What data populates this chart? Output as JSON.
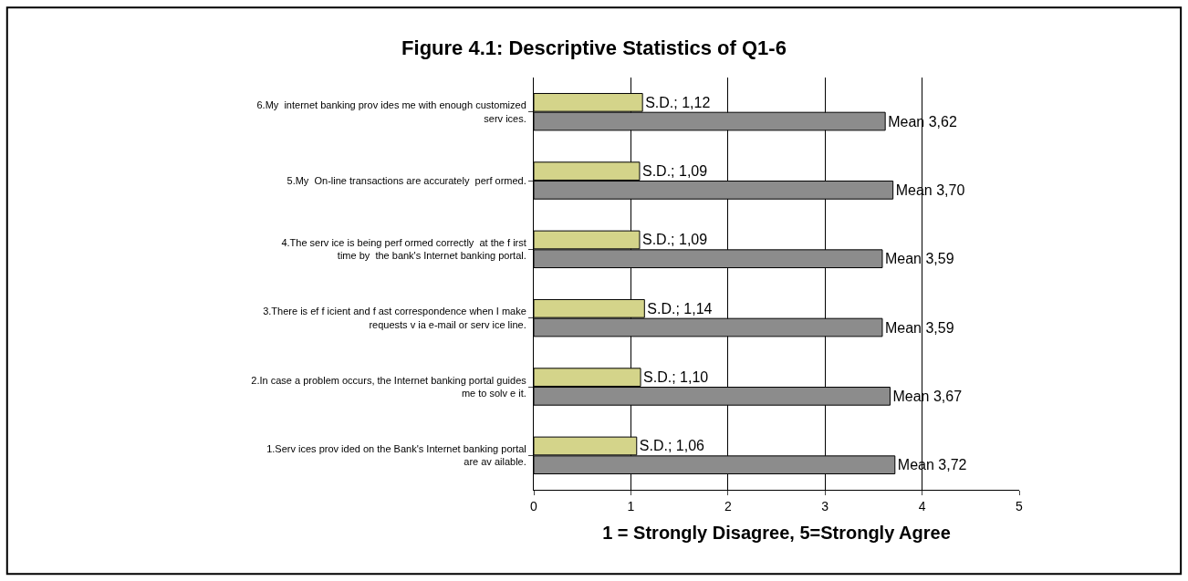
{
  "chart_data": {
    "type": "bar",
    "orientation": "horizontal",
    "title": "Figure 4.1: Descriptive Statistics of Q1-6",
    "xlabel": "1 = Strongly Disagree, 5=Strongly Agree",
    "categories": [
      "6.My  internet banking prov ides me with enough customized serv ices.",
      "5.My  On-line transactions are accurately  perf ormed.",
      "4.The serv ice is being perf ormed correctly  at the f irst time by  the bank's Internet banking portal.",
      "3.There is ef f icient and f ast correspondence when I make requests v ia e-mail or serv ice line.",
      "2.In case a problem occurs, the Internet banking portal guides me to solv e it.",
      "1.Serv ices prov ided on the Bank's Internet banking portal are av ailable."
    ],
    "series": [
      {
        "color": "#d4d48a",
        "values": [
          1.12,
          1.09,
          1.09,
          1.14,
          1.1,
          1.06
        ],
        "value_labels": [
          "S.D.; 1,12",
          "S.D.; 1,09",
          "S.D.; 1,09",
          "S.D.; 1,14",
          "S.D.; 1,10",
          "S.D.; 1,06"
        ]
      },
      {
        "color": "#8c8c8c",
        "values": [
          3.62,
          3.7,
          3.59,
          3.59,
          3.67,
          3.72
        ],
        "value_labels": [
          "Mean 3,62",
          "Mean 3,70",
          "Mean 3,59",
          "Mean 3,59",
          "Mean 3,67",
          "Mean 3,72"
        ]
      }
    ],
    "xlim": [
      0,
      5
    ],
    "xticks": [
      0,
      1,
      2,
      3,
      4,
      5
    ],
    "grid": "x",
    "legend": false
  }
}
